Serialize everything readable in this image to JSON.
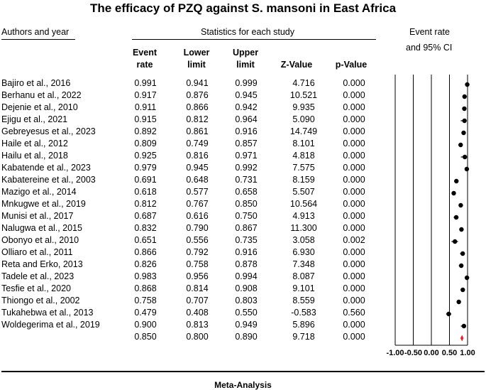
{
  "chart_data": {
    "type": "forest",
    "title": "The efficacy of PZQ against S. mansoni in East Africa",
    "headers": {
      "authors": "Authors and year",
      "stats_group": "Statistics for each study",
      "plot_group_line1": "Event rate",
      "plot_group_line2": "and 95% CI",
      "event_rate": [
        "Event",
        "rate"
      ],
      "lower_limit": [
        "Lower",
        "limit"
      ],
      "upper_limit": [
        "Upper",
        "limit"
      ],
      "z_value": "Z-Value",
      "p_value": "p-Value"
    },
    "studies": [
      {
        "name": "Bajiro et al., 2016",
        "rate": "0.991",
        "lower": "0.941",
        "upper": "0.999",
        "z": "4.716",
        "p": "0.000"
      },
      {
        "name": "Berhanu et al., 2022",
        "rate": "0.917",
        "lower": "0.876",
        "upper": "0.945",
        "z": "10.521",
        "p": "0.000"
      },
      {
        "name": "Dejenie et al., 2010",
        "rate": "0.911",
        "lower": "0.866",
        "upper": "0.942",
        "z": "9.935",
        "p": "0.000"
      },
      {
        "name": "Ejigu et al., 2021",
        "rate": "0.915",
        "lower": "0.812",
        "upper": "0.964",
        "z": "5.090",
        "p": "0.000"
      },
      {
        "name": "Gebreyesus et al., 2023",
        "rate": "0.892",
        "lower": "0.861",
        "upper": "0.916",
        "z": "14.749",
        "p": "0.000"
      },
      {
        "name": "Haile et al., 2012",
        "rate": "0.809",
        "lower": "0.749",
        "upper": "0.857",
        "z": "8.101",
        "p": "0.000"
      },
      {
        "name": "Hailu et al., 2018",
        "rate": "0.925",
        "lower": "0.816",
        "upper": "0.971",
        "z": "4.818",
        "p": "0.000"
      },
      {
        "name": "Kabatende et al., 2023",
        "rate": "0.979",
        "lower": "0.945",
        "upper": "0.992",
        "z": "7.575",
        "p": "0.000"
      },
      {
        "name": "Kabatereine et al., 2003",
        "rate": "0.691",
        "lower": "0.648",
        "upper": "0.731",
        "z": "8.159",
        "p": "0.000"
      },
      {
        "name": "Mazigo et al., 2014",
        "rate": "0.618",
        "lower": "0.577",
        "upper": "0.658",
        "z": "5.507",
        "p": "0.000"
      },
      {
        "name": "Mnkugwe et al., 2019",
        "rate": "0.812",
        "lower": "0.767",
        "upper": "0.850",
        "z": "10.564",
        "p": "0.000"
      },
      {
        "name": "Munisi et al., 2017",
        "rate": "0.687",
        "lower": "0.616",
        "upper": "0.750",
        "z": "4.913",
        "p": "0.000"
      },
      {
        "name": "Nalugwa et al., 2015",
        "rate": "0.832",
        "lower": "0.790",
        "upper": "0.867",
        "z": "11.300",
        "p": "0.000"
      },
      {
        "name": "Obonyo et al., 2010",
        "rate": "0.651",
        "lower": "0.556",
        "upper": "0.735",
        "z": "3.058",
        "p": "0.002"
      },
      {
        "name": "Olliaro et al., 2011",
        "rate": "0.866",
        "lower": "0.792",
        "upper": "0.916",
        "z": "6.930",
        "p": "0.000"
      },
      {
        "name": "Reta and Erko, 2013",
        "rate": "0.826",
        "lower": "0.758",
        "upper": "0.878",
        "z": "7.348",
        "p": "0.000"
      },
      {
        "name": "Tadele et al., 2023",
        "rate": "0.983",
        "lower": "0.956",
        "upper": "0.994",
        "z": "8.087",
        "p": "0.000"
      },
      {
        "name": "Tesfie et al., 2020",
        "rate": "0.868",
        "lower": "0.814",
        "upper": "0.908",
        "z": "9.101",
        "p": "0.000"
      },
      {
        "name": "Thiongo et al., 2002",
        "rate": "0.758",
        "lower": "0.707",
        "upper": "0.803",
        "z": "8.559",
        "p": "0.000"
      },
      {
        "name": "Tukahebwa et al., 2013",
        "rate": "0.479",
        "lower": "0.408",
        "upper": "0.550",
        "z": "-0.583",
        "p": "0.560"
      },
      {
        "name": "Woldegerima et al., 2019",
        "rate": "0.900",
        "lower": "0.813",
        "upper": "0.949",
        "z": "5.896",
        "p": "0.000"
      }
    ],
    "summary": {
      "rate": "0.850",
      "lower": "0.800",
      "upper": "0.890",
      "z": "9.718",
      "p": "0.000"
    },
    "axis": {
      "xlim": [
        -1.0,
        1.0
      ],
      "ticks": [
        -1.0,
        -0.5,
        0.0,
        0.5,
        1.0
      ],
      "tick_labels": [
        "-1.00",
        "-0.50",
        "0.00",
        "0.50",
        "1.00"
      ]
    },
    "footer": "Meta-Analysis",
    "colors": {
      "marker": "#000000",
      "summary": "#e8262b",
      "grid": "#000000"
    }
  }
}
